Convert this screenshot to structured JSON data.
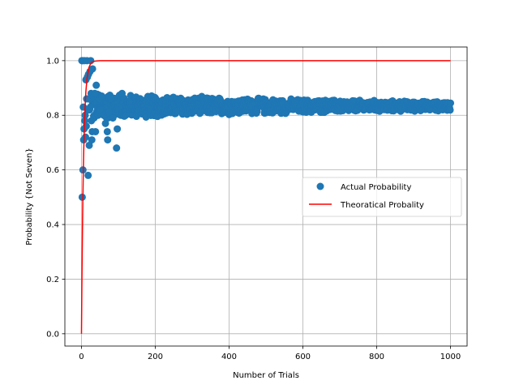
{
  "chart_data": {
    "type": "scatter",
    "title": "",
    "xlabel": "Number of Trials",
    "ylabel": "Probability {Not Seven}",
    "xlim": [
      -45,
      1045
    ],
    "ylim": [
      -0.045,
      1.05
    ],
    "xticks": [
      0,
      200,
      400,
      600,
      800,
      1000
    ],
    "yticks": [
      0.0,
      0.2,
      0.4,
      0.6,
      0.8,
      1.0
    ],
    "xtick_labels": [
      "0",
      "200",
      "400",
      "600",
      "800",
      "1000"
    ],
    "ytick_labels": [
      "0.0",
      "0.2",
      "0.4",
      "0.6",
      "0.8",
      "1.0"
    ],
    "grid": true,
    "legend_position": "center-right",
    "series": [
      {
        "name": "Actual Probability",
        "kind": "scatter",
        "color": "#1f77b4",
        "points": [
          [
            1,
            1.0
          ],
          [
            2,
            0.5
          ],
          [
            3,
            1.0
          ],
          [
            4,
            0.6
          ],
          [
            5,
            0.83
          ],
          [
            6,
            0.71
          ],
          [
            7,
            0.75
          ],
          [
            8,
            1.0
          ],
          [
            9,
            0.78
          ],
          [
            10,
            0.8
          ],
          [
            11,
            0.72
          ],
          [
            12,
            0.93
          ],
          [
            13,
            0.76
          ],
          [
            14,
            0.86
          ],
          [
            15,
            1.0
          ],
          [
            16,
            0.94
          ],
          [
            17,
            0.82
          ],
          [
            18,
            0.58
          ],
          [
            19,
            0.95
          ],
          [
            20,
            0.86
          ],
          [
            21,
            0.69
          ],
          [
            22,
            0.82
          ],
          [
            23,
            0.96
          ],
          [
            24,
            0.83
          ],
          [
            25,
            1.0
          ],
          [
            26,
            0.88
          ],
          [
            27,
            0.78
          ],
          [
            28,
            0.71
          ],
          [
            29,
            0.74
          ],
          [
            30,
            0.97
          ],
          [
            32,
            0.87
          ],
          [
            34,
            0.79
          ],
          [
            36,
            0.88
          ],
          [
            38,
            0.74
          ],
          [
            40,
            0.91
          ],
          [
            42,
            0.85
          ],
          [
            45,
            0.8
          ],
          [
            48,
            0.86
          ],
          [
            50,
            0.82
          ],
          [
            55,
            0.87
          ],
          [
            60,
            0.8
          ],
          [
            65,
            0.77
          ],
          [
            70,
            0.74
          ],
          [
            71,
            0.71
          ],
          [
            75,
            0.81
          ],
          [
            80,
            0.86
          ],
          [
            85,
            0.79
          ],
          [
            90,
            0.84
          ],
          [
            95,
            0.68
          ],
          [
            97,
            0.75
          ],
          [
            100,
            0.83
          ],
          [
            110,
            0.88
          ],
          [
            120,
            0.8
          ],
          [
            130,
            0.85
          ]
        ]
      },
      {
        "name": "Theoratical Probality",
        "kind": "line",
        "color": "#ff0000",
        "points": [
          [
            0,
            0.0
          ],
          [
            1,
            0.167
          ],
          [
            2,
            0.306
          ],
          [
            3,
            0.421
          ],
          [
            4,
            0.518
          ],
          [
            5,
            0.598
          ],
          [
            6,
            0.665
          ],
          [
            8,
            0.767
          ],
          [
            10,
            0.838
          ],
          [
            12,
            0.888
          ],
          [
            15,
            0.935
          ],
          [
            20,
            0.974
          ],
          [
            25,
            0.99
          ],
          [
            30,
            0.996
          ],
          [
            40,
            0.999
          ],
          [
            50,
            1.0
          ],
          [
            1000,
            1.0
          ]
        ]
      }
    ],
    "dense_band": {
      "series": "Actual Probability",
      "x_start": 30,
      "x_end": 1000,
      "center": 0.8333,
      "spread_start": 0.06,
      "spread_end": 0.018,
      "points_per_unit": 1
    }
  }
}
